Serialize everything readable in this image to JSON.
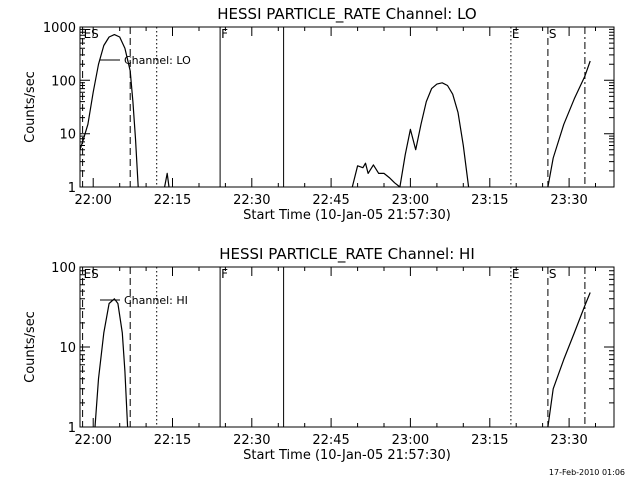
{
  "footer": {
    "timestamp": "17-Feb-2010 01:06"
  },
  "chart_data": [
    {
      "type": "line",
      "title": "HESSI PARTICLE_RATE Channel: LO",
      "xlabel": "Start Time (10-Jan-05 21:57:30)",
      "ylabel": "Counts/sec",
      "yscale": "log",
      "ylim": [
        1,
        1000
      ],
      "xlim": [
        "21:57:30",
        "23:38:30"
      ],
      "x_ticks": [
        "22:00",
        "22:15",
        "22:30",
        "22:45",
        "23:00",
        "23:15",
        "23:30"
      ],
      "y_ticks": [
        "1",
        "10",
        "100",
        "1000"
      ],
      "legend": {
        "label": "Channel: LO",
        "position": "top-left"
      },
      "markers": [
        {
          "label": "ES",
          "time": "21:58",
          "style": "dashed"
        },
        {
          "label": "",
          "time": "22:07",
          "style": "dashed"
        },
        {
          "label": "",
          "time": "22:12",
          "style": "dotted"
        },
        {
          "label": "F",
          "time": "22:24",
          "style": "solid"
        },
        {
          "label": "",
          "time": "22:36",
          "style": "solid"
        },
        {
          "label": "E",
          "time": "23:19",
          "style": "dotted"
        },
        {
          "label": "S",
          "time": "23:26",
          "style": "dashed"
        },
        {
          "label": "",
          "time": "23:33",
          "style": "dashdot"
        }
      ],
      "series": [
        {
          "segments": [
            [
              [
                "21:57:30",
                5
              ],
              [
                "21:58",
                7
              ],
              [
                "21:59",
                15
              ],
              [
                "22:00",
                60
              ],
              [
                "22:01",
                200
              ],
              [
                "22:02",
                450
              ],
              [
                "22:03",
                650
              ],
              [
                "22:04",
                720
              ],
              [
                "22:05",
                650
              ],
              [
                "22:06",
                400
              ],
              [
                "22:07",
                150
              ],
              [
                "22:07:30",
                40
              ],
              [
                "22:08",
                8
              ],
              [
                "22:08:30",
                1
              ]
            ],
            [
              [
                "22:13:30",
                1
              ],
              [
                "22:14",
                1.8
              ],
              [
                "22:14:20",
                1
              ]
            ],
            [
              [
                "22:49",
                1
              ],
              [
                "22:50",
                2.5
              ],
              [
                "22:51",
                2.3
              ],
              [
                "22:51:30",
                2.8
              ],
              [
                "22:52",
                1.8
              ],
              [
                "22:53",
                2.6
              ],
              [
                "22:54",
                1.8
              ],
              [
                "22:55",
                1.8
              ],
              [
                "22:56",
                1.5
              ],
              [
                "22:57",
                1.2
              ],
              [
                "22:58",
                1
              ],
              [
                "22:59",
                4
              ],
              [
                "23:00",
                12
              ],
              [
                "23:01",
                5
              ],
              [
                "23:02",
                15
              ],
              [
                "23:03",
                40
              ],
              [
                "23:04",
                70
              ],
              [
                "23:05",
                85
              ],
              [
                "23:06",
                90
              ],
              [
                "23:07",
                80
              ],
              [
                "23:08",
                55
              ],
              [
                "23:09",
                25
              ],
              [
                "23:10",
                6
              ],
              [
                "23:11",
                1
              ]
            ],
            [
              [
                "23:26",
                1
              ],
              [
                "23:27",
                3.5
              ],
              [
                "23:29",
                15
              ],
              [
                "23:31",
                45
              ],
              [
                "23:33",
                120
              ],
              [
                "23:34",
                230
              ]
            ]
          ]
        }
      ]
    },
    {
      "type": "line",
      "title": "HESSI PARTICLE_RATE Channel: HI",
      "xlabel": "Start Time (10-Jan-05 21:57:30)",
      "ylabel": "Counts/sec",
      "yscale": "log",
      "ylim": [
        1,
        100
      ],
      "xlim": [
        "21:57:30",
        "23:38:30"
      ],
      "x_ticks": [
        "22:00",
        "22:15",
        "22:30",
        "22:45",
        "23:00",
        "23:15",
        "23:30"
      ],
      "y_ticks": [
        "1",
        "10",
        "100"
      ],
      "legend": {
        "label": "Channel: HI",
        "position": "top-left"
      },
      "markers": [
        {
          "label": "ES",
          "time": "21:58",
          "style": "dashed"
        },
        {
          "label": "",
          "time": "22:07",
          "style": "dashed"
        },
        {
          "label": "",
          "time": "22:12",
          "style": "dotted"
        },
        {
          "label": "F",
          "time": "22:24",
          "style": "solid"
        },
        {
          "label": "",
          "time": "22:36",
          "style": "solid"
        },
        {
          "label": "E",
          "time": "23:19",
          "style": "dotted"
        },
        {
          "label": "S",
          "time": "23:26",
          "style": "dashed"
        },
        {
          "label": "",
          "time": "23:33",
          "style": "dashdot"
        }
      ],
      "series": [
        {
          "segments": [
            [
              [
                "22:00:20",
                1
              ],
              [
                "22:01",
                4
              ],
              [
                "22:02",
                15
              ],
              [
                "22:03",
                35
              ],
              [
                "22:04",
                40
              ],
              [
                "22:04:40",
                35
              ],
              [
                "22:05:30",
                15
              ],
              [
                "22:06",
                5
              ],
              [
                "22:06:30",
                1
              ]
            ],
            [
              [
                "23:26",
                1
              ],
              [
                "23:27",
                3
              ],
              [
                "23:29",
                7
              ],
              [
                "23:31",
                15
              ],
              [
                "23:33",
                33
              ],
              [
                "23:34",
                48
              ]
            ]
          ]
        }
      ]
    }
  ]
}
